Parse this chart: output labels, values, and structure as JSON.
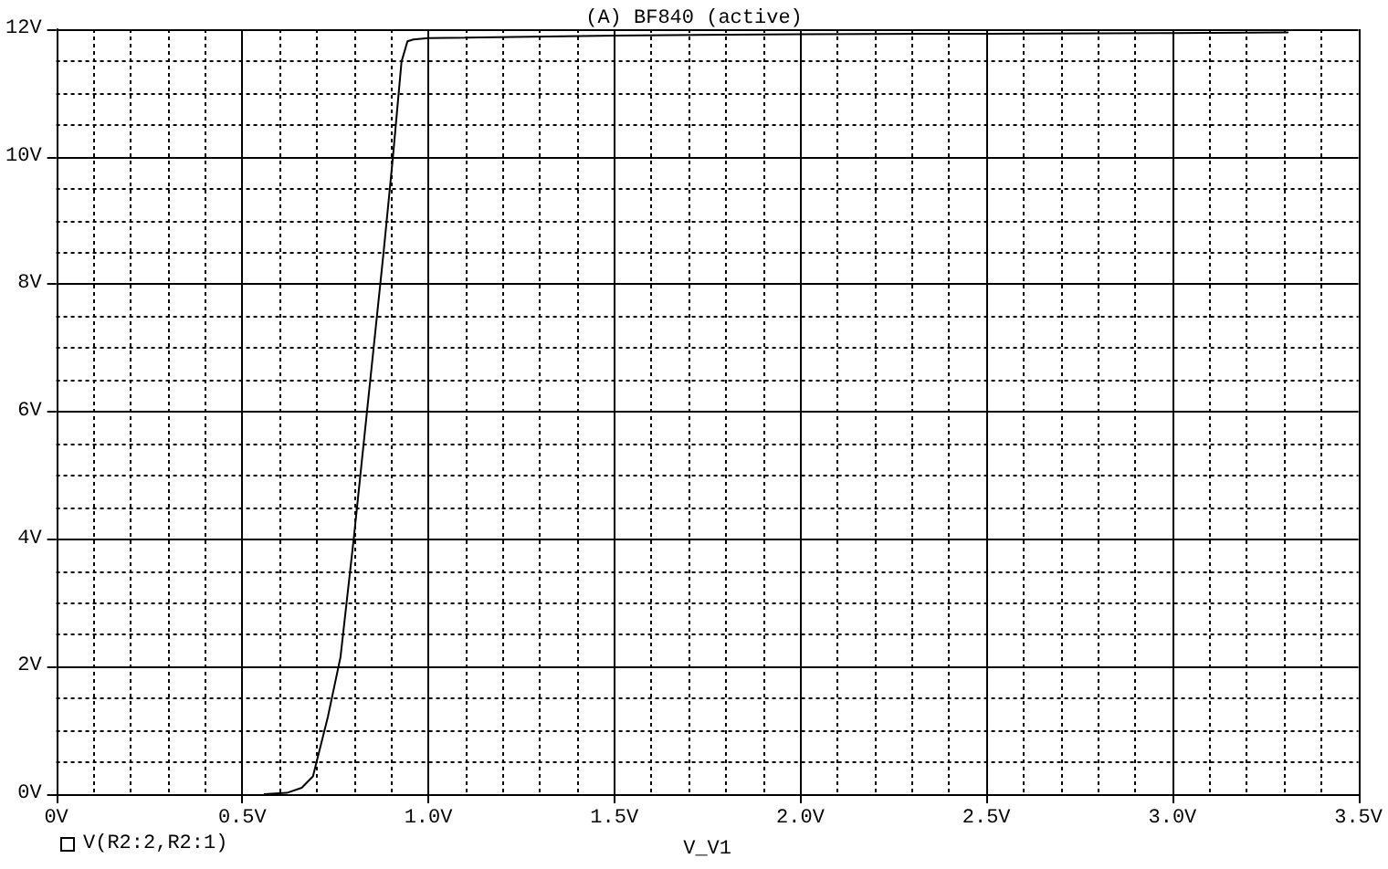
{
  "chart_data": {
    "type": "line",
    "title": "(A) BF840 (active)",
    "xlabel": "V_V1",
    "x": [
      0.56,
      0.62,
      0.66,
      0.69,
      0.73,
      0.764,
      0.8,
      0.84,
      0.88,
      0.905,
      0.928,
      0.944,
      0.96,
      1.0,
      1.5,
      2.0,
      2.5,
      3.0,
      3.31
    ],
    "series": [
      {
        "name": "V(R2:2,R2:1)",
        "color": "#000000",
        "values": [
          0,
          0.02,
          0.1,
          0.28,
          1.21,
          2.15,
          4.03,
          6.27,
          8.51,
          10.0,
          11.49,
          11.81,
          11.84,
          11.86,
          11.9,
          11.92,
          11.93,
          11.94,
          11.95
        ]
      }
    ],
    "xlim": [
      0,
      3.5
    ],
    "xticks": [
      {
        "value": 0,
        "label": "0V"
      },
      {
        "value": 0.5,
        "label": "0.5V"
      },
      {
        "value": 1,
        "label": "1.0V"
      },
      {
        "value": 1.5,
        "label": "1.5V"
      },
      {
        "value": 2,
        "label": "2.0V"
      },
      {
        "value": 2.5,
        "label": "2.5V"
      },
      {
        "value": 3,
        "label": "3.0V"
      },
      {
        "value": 3.5,
        "label": "3.5V"
      }
    ],
    "ylim": [
      0,
      12
    ],
    "yticks": [
      {
        "value": 0,
        "label": "0V"
      },
      {
        "value": 2,
        "label": "2V"
      },
      {
        "value": 4,
        "label": "4V"
      },
      {
        "value": 6,
        "label": "6V"
      },
      {
        "value": 8,
        "label": "8V"
      },
      {
        "value": 10,
        "label": "10V"
      },
      {
        "value": 12,
        "label": "12V"
      }
    ],
    "grid": true,
    "legend": "bottom left",
    "marker": "none",
    "line_style": "solid"
  }
}
